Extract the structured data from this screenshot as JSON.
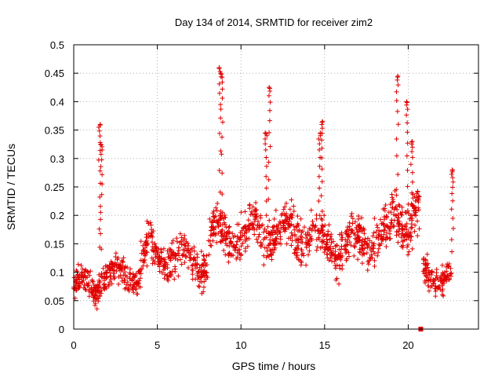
{
  "chart_data": {
    "type": "scatter",
    "title": "Day 134 of 2014, SRMTID for receiver zim2",
    "xlabel": "GPS time / hours",
    "ylabel": "SRMTID / TECUs",
    "xlim": [
      0,
      24.2
    ],
    "ylim": [
      0,
      0.5
    ],
    "x_ticks": [
      0,
      5,
      10,
      15,
      20
    ],
    "x_tick_labels": [
      "0",
      "5",
      "10",
      "15",
      "20"
    ],
    "y_ticks": [
      0,
      0.05,
      0.1,
      0.15,
      0.2,
      0.25,
      0.3,
      0.35,
      0.4,
      0.45,
      0.5
    ],
    "y_tick_labels": [
      "0",
      "0.05",
      "0.1",
      "0.15",
      "0.2",
      "0.25",
      "0.3",
      "0.35",
      "0.4",
      "0.45",
      "0.5"
    ],
    "grid": true,
    "marker": "+",
    "color": "#e00000",
    "series": [
      {
        "name": "SRMTID",
        "segments": [
          {
            "t0": 0.0,
            "t1": 1.5,
            "base": 0.075,
            "spread": 0.035,
            "n": 120
          },
          {
            "t0": 1.5,
            "t1": 4.0,
            "base": 0.095,
            "spread": 0.04,
            "n": 170
          },
          {
            "t0": 4.0,
            "t1": 6.0,
            "base": 0.13,
            "spread": 0.05,
            "n": 140
          },
          {
            "t0": 6.0,
            "t1": 8.0,
            "base": 0.12,
            "spread": 0.05,
            "n": 130
          },
          {
            "t0": 8.0,
            "t1": 10.5,
            "base": 0.165,
            "spread": 0.05,
            "n": 170
          },
          {
            "t0": 10.5,
            "t1": 14.5,
            "base": 0.17,
            "spread": 0.055,
            "n": 260
          },
          {
            "t0": 14.5,
            "t1": 17.0,
            "base": 0.145,
            "spread": 0.055,
            "n": 170
          },
          {
            "t0": 17.0,
            "t1": 19.0,
            "base": 0.16,
            "spread": 0.06,
            "n": 140
          },
          {
            "t0": 19.0,
            "t1": 20.7,
            "base": 0.2,
            "spread": 0.06,
            "n": 130
          },
          {
            "t0": 20.9,
            "t1": 22.6,
            "base": 0.095,
            "spread": 0.035,
            "n": 120
          }
        ],
        "spikes": [
          {
            "t": 1.55,
            "peak": 0.36
          },
          {
            "t": 1.65,
            "peak": 0.325
          },
          {
            "t": 8.75,
            "peak": 0.46
          },
          {
            "t": 8.85,
            "peak": 0.45
          },
          {
            "t": 11.5,
            "peak": 0.345
          },
          {
            "t": 11.7,
            "peak": 0.425
          },
          {
            "t": 14.7,
            "peak": 0.345
          },
          {
            "t": 14.85,
            "peak": 0.365
          },
          {
            "t": 19.35,
            "peak": 0.445
          },
          {
            "t": 19.95,
            "peak": 0.4
          },
          {
            "t": 20.2,
            "peak": 0.33
          },
          {
            "t": 22.65,
            "peak": 0.28
          }
        ],
        "outlier_points": [
          {
            "x": 20.75,
            "y": 0.0
          }
        ]
      }
    ]
  }
}
